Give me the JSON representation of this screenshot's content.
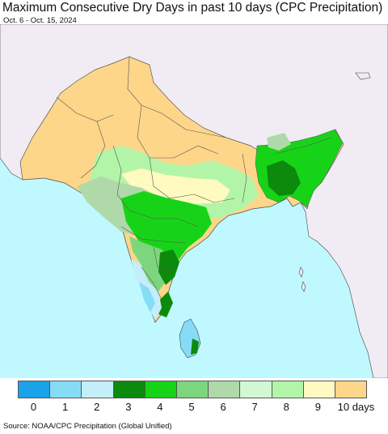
{
  "title": "Maximum Consecutive Dry Days in past 10 days (CPC Precipitation)",
  "subtitle": "Oct. 6 - Oct. 15, 2024",
  "legend": {
    "items": [
      {
        "label": "0",
        "color": "#1aa3e8"
      },
      {
        "label": "1",
        "color": "#86dcf7"
      },
      {
        "label": "2",
        "color": "#c3eefa"
      },
      {
        "label": "3",
        "color": "#0c8a0c"
      },
      {
        "label": "4",
        "color": "#17d317"
      },
      {
        "label": "5",
        "color": "#7dd67d"
      },
      {
        "label": "6",
        "color": "#b0d9aa"
      },
      {
        "label": "7",
        "color": "#d3f7d3"
      },
      {
        "label": "8",
        "color": "#b3f5a8"
      },
      {
        "label": "9",
        "color": "#fffac0"
      },
      {
        "label": "10 days",
        "color": "#fdd68a"
      }
    ]
  },
  "source": "Source: NOAA/CPC Precipitation (Global Unified)",
  "colors": {
    "ocean": "#bff9ff",
    "outside_land": "#f1ecf3",
    "border": "#444444"
  }
}
